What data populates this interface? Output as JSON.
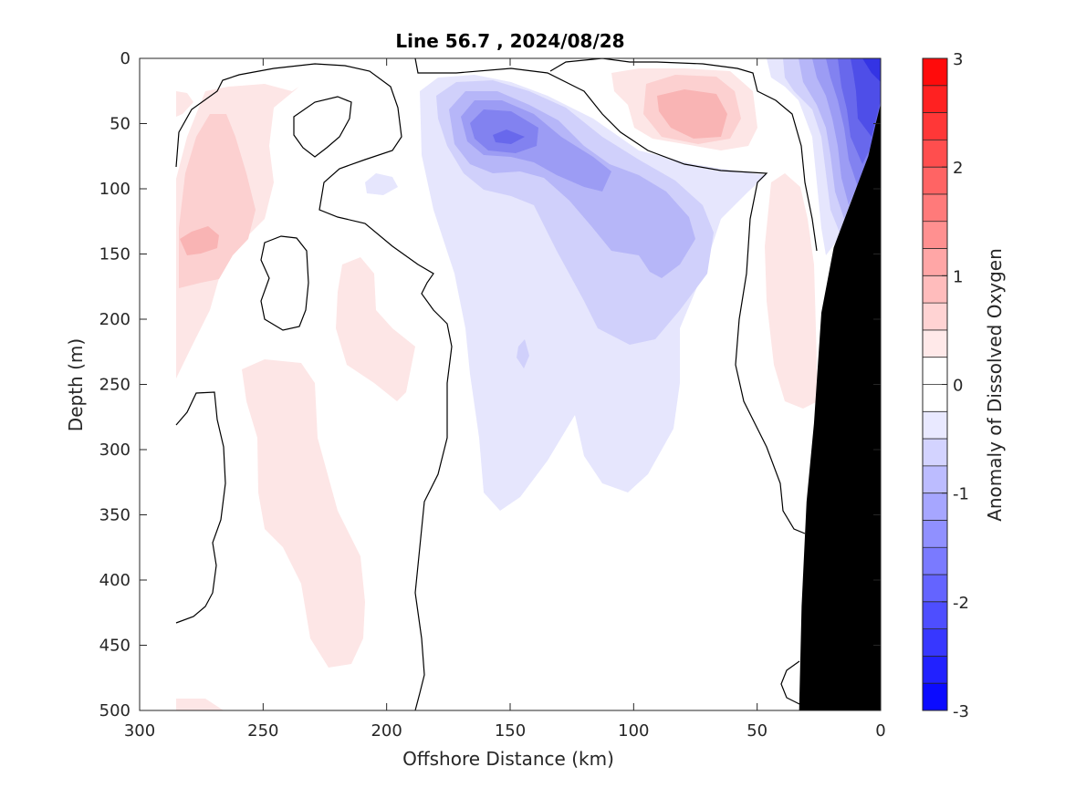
{
  "chart_data": {
    "type": "heatmap",
    "title": "Line 56.7 , 2024/08/28",
    "xlabel": "Offshore Distance (km)",
    "ylabel": "Depth (m)",
    "xlim": [
      300,
      0
    ],
    "ylim": [
      500,
      0
    ],
    "x_reversed": true,
    "y_reversed": true,
    "x_ticks": [
      300,
      250,
      200,
      150,
      100,
      50,
      0
    ],
    "y_ticks": [
      0,
      50,
      100,
      150,
      200,
      250,
      300,
      350,
      400,
      450,
      500
    ],
    "colorbar": {
      "label": "Anomaly of Dissolved Oxygen",
      "range": [
        -3,
        3
      ],
      "ticks": [
        -3,
        -2,
        -1,
        0,
        1,
        2,
        3
      ],
      "levels": 24,
      "negative_color": "#0000ff",
      "positive_color": "#ff0000",
      "zero_color": "#ffffff"
    },
    "zero_contour_color": "#000000",
    "bathymetry_color": "#000000",
    "bathymetry": [
      {
        "x": 0,
        "depth": 35
      },
      {
        "x": 2,
        "depth": 50
      },
      {
        "x": 5,
        "depth": 75
      },
      {
        "x": 10,
        "depth": 100
      },
      {
        "x": 15,
        "depth": 125
      },
      {
        "x": 19,
        "depth": 145
      },
      {
        "x": 24,
        "depth": 195
      },
      {
        "x": 27,
        "depth": 280
      },
      {
        "x": 30,
        "depth": 340
      },
      {
        "x": 32,
        "depth": 420
      },
      {
        "x": 33,
        "depth": 500
      }
    ],
    "anomaly_features": [
      {
        "label": "coastal low core",
        "x": 7,
        "depth": 10,
        "value": -2.75
      },
      {
        "label": "coastal low",
        "x": 10,
        "depth": 60,
        "value": -1.75
      },
      {
        "label": "subsurface low core",
        "x": 150,
        "depth": 60,
        "value": -1.75
      },
      {
        "label": "subsurface low",
        "x": 105,
        "depth": 130,
        "value": -1.0
      },
      {
        "label": "broad low",
        "x": 125,
        "depth": 270,
        "value": -0.5
      },
      {
        "label": "nearshore high",
        "x": 72,
        "depth": 45,
        "value": 0.75
      },
      {
        "label": "offshore high",
        "x": 273,
        "depth": 120,
        "value": 0.5
      },
      {
        "label": "offshore high core",
        "x": 277,
        "depth": 140,
        "value": 0.75
      },
      {
        "label": "mid high",
        "x": 205,
        "depth": 240,
        "value": 0.25
      },
      {
        "label": "deep high",
        "x": 235,
        "depth": 380,
        "value": 0.25
      },
      {
        "label": "shelf high",
        "x": 38,
        "depth": 200,
        "value": 0.25
      }
    ]
  }
}
